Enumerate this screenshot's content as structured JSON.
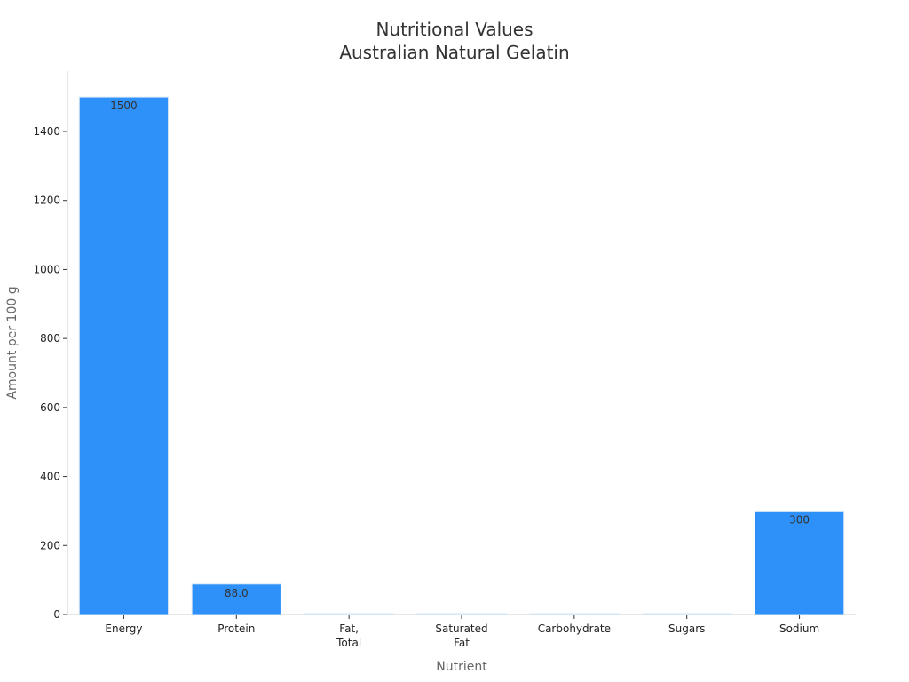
{
  "chart_data": {
    "type": "bar",
    "title_lines": [
      "Nutritional Values",
      "Australian Natural Gelatin"
    ],
    "xlabel": "Nutrient",
    "ylabel": "Amount per 100 g",
    "categories": [
      [
        "Energy"
      ],
      [
        "Protein"
      ],
      [
        "Fat,",
        "Total"
      ],
      [
        "Saturated",
        "Fat"
      ],
      [
        "Carbohydrate"
      ],
      [
        "Sugars"
      ],
      [
        "Sodium"
      ]
    ],
    "values": [
      1500,
      88.0,
      0,
      0,
      0,
      0,
      300
    ],
    "data_labels": [
      "1500",
      "88.0",
      "",
      "",
      "",
      "",
      "300"
    ],
    "ylim": [
      0,
      1575
    ],
    "yticks": [
      0,
      200,
      400,
      600,
      800,
      1000,
      1200,
      1400
    ],
    "bar_color": "#2d91f9",
    "bar_edge_color": "#d6e6f5",
    "grid": false
  }
}
